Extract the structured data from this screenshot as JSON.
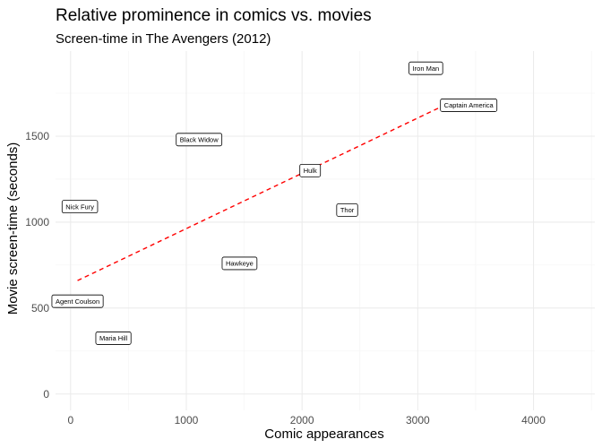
{
  "chart_data": {
    "type": "scatter",
    "title": "Relative prominence in comics vs. movies",
    "subtitle": "Screen-time in The Avengers (2012)",
    "xlabel": "Comic appearances",
    "ylabel": "Movie screen-time (seconds)",
    "xlim": [
      -130,
      4530
    ],
    "ylim": [
      -95,
      1995
    ],
    "x_ticks": [
      0,
      1000,
      2000,
      3000,
      4000
    ],
    "y_ticks": [
      0,
      500,
      1000,
      1500
    ],
    "x_tick_labels": [
      "0",
      "1000",
      "2000",
      "3000",
      "4000"
    ],
    "y_tick_labels": [
      "0",
      "500",
      "1000",
      "1500"
    ],
    "grid": true,
    "points": [
      {
        "label": "Iron Man",
        "x": 3070,
        "y": 1895
      },
      {
        "label": "Captain America",
        "x": 3440,
        "y": 1680
      },
      {
        "label": "Black Widow",
        "x": 1110,
        "y": 1480
      },
      {
        "label": "Hulk",
        "x": 2070,
        "y": 1300
      },
      {
        "label": "Nick Fury",
        "x": 80,
        "y": 1090
      },
      {
        "label": "Thor",
        "x": 2390,
        "y": 1070
      },
      {
        "label": "Hawkeye",
        "x": 1460,
        "y": 760
      },
      {
        "label": "Agent Coulson",
        "x": 60,
        "y": 540
      },
      {
        "label": "Maria Hill",
        "x": 370,
        "y": 325
      }
    ],
    "trend_line": {
      "x": [
        60,
        3200
      ],
      "y": [
        660,
        1670
      ],
      "style": "dashed",
      "color": "#ff0000"
    }
  }
}
